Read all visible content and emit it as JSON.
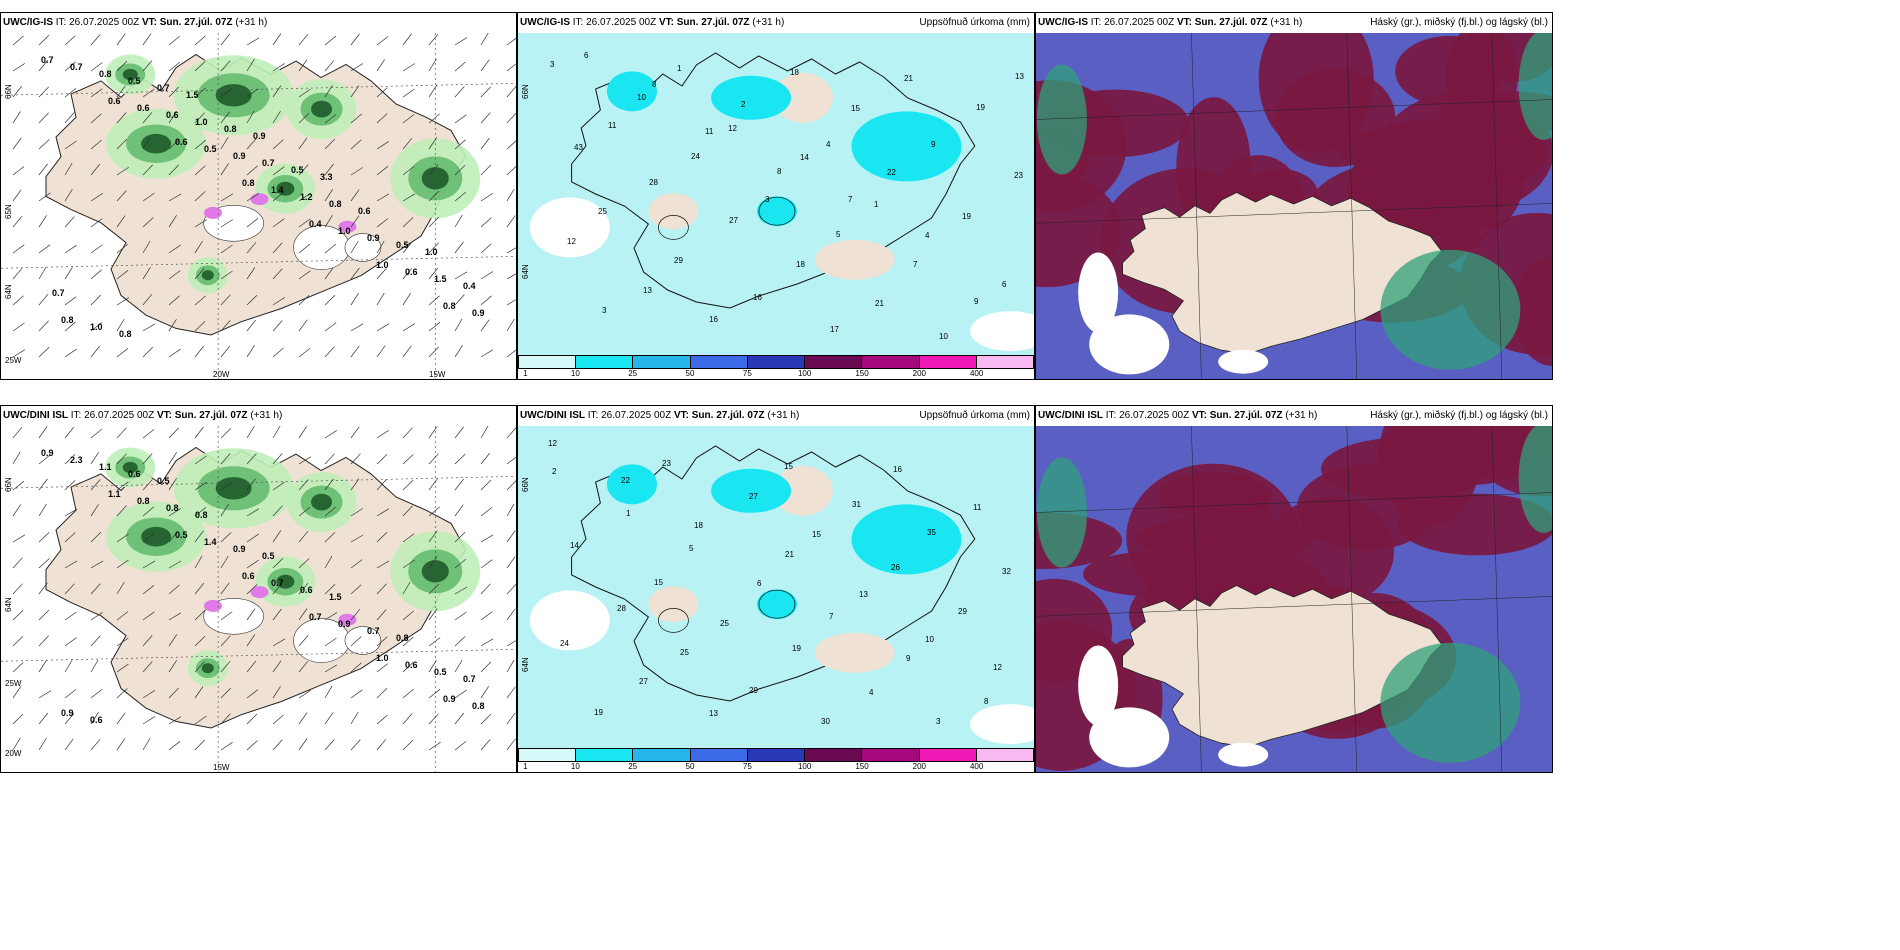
{
  "panels": [
    {
      "id": "ig-top-left",
      "model": "UWC/IG-IS",
      "it": "IT: 26.07.2025 00Z",
      "vt": "VT: Sun. 27.júl. 07Z",
      "lead": "(+31 h)",
      "right": "",
      "labels": [
        "0.7",
        "0.6",
        "0.6",
        "0.8",
        "0.4",
        "1.0",
        "0.8",
        "0.7",
        "0.6",
        "0.5",
        "1.4",
        "1.0",
        "0.6",
        "0.9",
        "0.8",
        "0.6",
        "0.9",
        "1.2",
        "0.9",
        "1.5",
        "0.8",
        "0.5",
        "1.0",
        "0.7",
        "0.8",
        "0.5",
        "0.4",
        "1.0",
        "0.7",
        "0.8",
        "0.5",
        "0.6",
        "1.0",
        "0.7",
        "0.8",
        "1.5",
        "0.9",
        "3.3"
      ],
      "axis": [
        "66N",
        "65N",
        "64N",
        "25W",
        "20W",
        "15W"
      ]
    },
    {
      "id": "ig-top-mid",
      "model": "UWC/IG-IS",
      "it": "IT: 26.07.2025 00Z",
      "vt": "VT: Sun. 27.júl. 07Z",
      "lead": "(+31 h)",
      "right": "Uppsöfnuð úrkoma (mm)",
      "labels": [
        "3",
        "10",
        "11",
        "8",
        "7",
        "4",
        "6",
        "3",
        "1",
        "2",
        "4",
        "22",
        "19",
        "12",
        "13",
        "16",
        "18",
        "15",
        "9",
        "23",
        "25",
        "29",
        "16",
        "17",
        "21",
        "19",
        "43",
        "28",
        "27",
        "18",
        "21",
        "10",
        "13",
        "11",
        "24",
        "3",
        "5",
        "7",
        "9",
        "6",
        "8",
        "12",
        "14",
        "1"
      ],
      "axis": [
        "66N",
        "64N"
      ]
    },
    {
      "id": "ig-top-right",
      "model": "UWC/IG-IS",
      "it": "IT: 26.07.2025 00Z",
      "vt": "VT: Sun. 27.júl. 07Z",
      "lead": "(+31 h)",
      "right": "Háský (gr.), miðský (fj.bl.) og lágský (bl.)",
      "labels": [],
      "axis": []
    },
    {
      "id": "dini-bot-left",
      "model": "UWC/DINI ISL",
      "it": "IT: 26.07.2025 00Z",
      "vt": "VT: Sun. 27.júl. 07Z",
      "lead": "(+31 h)",
      "right": "",
      "labels": [
        "0.9",
        "1.1",
        "0.5",
        "0.6",
        "0.7",
        "1.0",
        "0.9",
        "2.3",
        "0.8",
        "1.4",
        "0.7",
        "0.9",
        "0.6",
        "0.8",
        "1.1",
        "0.8",
        "0.9",
        "0.6",
        "0.7",
        "0.5",
        "0.9",
        "0.6",
        "0.8",
        "0.5",
        "1.5",
        "0.8",
        "0.7",
        "0.6",
        "0.5"
      ],
      "axis": [
        "66N",
        "64N",
        "25W",
        "20W",
        "15W"
      ]
    },
    {
      "id": "dini-bot-mid",
      "model": "UWC/DINI ISL",
      "it": "IT: 26.07.2025 00Z",
      "vt": "VT: Sun. 27.júl. 07Z",
      "lead": "(+31 h)",
      "right": "Uppsöfnuð úrkoma (mm)",
      "labels": [
        "12",
        "22",
        "18",
        "21",
        "13",
        "10",
        "12",
        "19",
        "23",
        "27",
        "15",
        "26",
        "29",
        "24",
        "27",
        "13",
        "15",
        "31",
        "35",
        "32",
        "28",
        "25",
        "29",
        "30",
        "16",
        "11",
        "14",
        "15",
        "25",
        "19",
        "4",
        "3",
        "2",
        "1",
        "5",
        "6",
        "7",
        "9",
        "8"
      ],
      "axis": [
        "66N",
        "64N"
      ]
    },
    {
      "id": "dini-bot-right",
      "model": "UWC/DINI ISL",
      "it": "IT: 26.07.2025 00Z",
      "vt": "VT: Sun. 27.júl. 07Z",
      "lead": "(+31 h)",
      "right": "Háský (gr.), miðský (fj.bl.) og lágský (bl.)",
      "labels": [],
      "axis": []
    }
  ],
  "colorbar": {
    "ticks": [
      "1",
      "10",
      "25",
      "50",
      "75",
      "100",
      "150",
      "200",
      "400"
    ],
    "colors": [
      "#d6f8f8",
      "#19e6f0",
      "#27b6ea",
      "#3c6ae6",
      "#2a38b8",
      "#6a0a52",
      "#a4087c",
      "#ee18b4",
      "#f8b8f0"
    ]
  },
  "colors": {
    "land": "#efe2d4",
    "sea_cyan": "#b8f2f4",
    "green_light": "#c6f0c0",
    "green_dark": "#1e5a2a",
    "cloud_maroon": "#7a1840",
    "cloud_blue": "#5a5fc4"
  }
}
